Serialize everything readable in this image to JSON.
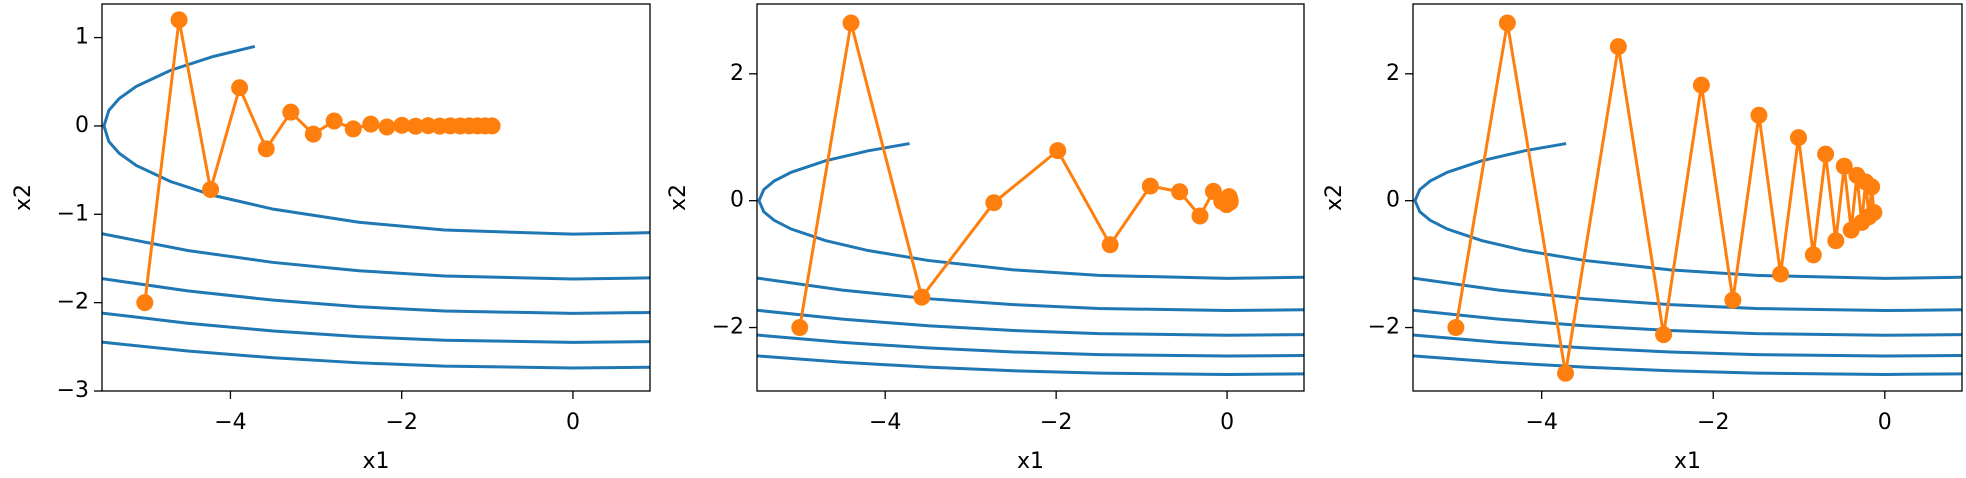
{
  "chart_data": [
    {
      "type": "line",
      "xlabel": "x1",
      "ylabel": "x2",
      "xlim": [
        -5.5,
        0.9
      ],
      "ylim": [
        -3,
        1.38
      ],
      "xticks": [
        {
          "value": -4,
          "label": "−4"
        },
        {
          "value": -2,
          "label": "−2"
        },
        0
      ],
      "yticks": [
        {
          "value": -3,
          "label": "−3"
        },
        {
          "value": -2,
          "label": "−2"
        },
        {
          "value": -1,
          "label": "−1"
        },
        0,
        1
      ],
      "series": [
        {
          "color": "#1f77b4",
          "x": [
            -3.715,
            -4.2,
            -4.7,
            -5.1,
            -5.3,
            -5.42,
            -5.477,
            -5.42,
            -5.3,
            -5.1,
            -4.7,
            -4.2,
            -3.5,
            -2.5,
            -1.5,
            0,
            0.9
          ],
          "values": [
            0.9,
            0.786,
            0.629,
            0.447,
            0.309,
            0.176,
            0,
            -0.176,
            -0.309,
            -0.447,
            -0.629,
            -0.786,
            -0.942,
            -1.09,
            -1.178,
            -1.225,
            -1.208
          ]
        },
        {
          "color": "#1f77b4",
          "x": [
            -5.5,
            -4.5,
            -3.5,
            -2.5,
            -1.5,
            0,
            0.9
          ],
          "values": [
            -1.22,
            -1.41,
            -1.545,
            -1.639,
            -1.699,
            -1.732,
            -1.72
          ]
        },
        {
          "color": "#1f77b4",
          "x": [
            -5.5,
            -4.5,
            -3.5,
            -2.5,
            -1.5,
            0,
            0.9
          ],
          "values": [
            -1.728,
            -1.867,
            -1.972,
            -2.046,
            -2.095,
            -2.121,
            -2.112
          ]
        },
        {
          "color": "#1f77b4",
          "x": [
            -5.5,
            -4.5,
            -3.5,
            -2.5,
            -1.5,
            0,
            0.9
          ],
          "values": [
            -2.118,
            -2.233,
            -2.321,
            -2.385,
            -2.426,
            -2.449,
            -2.441
          ]
        },
        {
          "color": "#1f77b4",
          "x": [
            -5.5,
            -4.5,
            -3.5,
            -2.5,
            -1.5,
            0,
            0.9
          ],
          "values": [
            -2.447,
            -2.547,
            -2.624,
            -2.681,
            -2.718,
            -2.739,
            -2.731
          ]
        },
        {
          "color": "#ff7f0e",
          "marker": "o",
          "x": [
            -5,
            -4.6,
            -4.232,
            -3.893,
            -3.582,
            -3.295,
            -3.032,
            -2.789,
            -2.566,
            -2.361,
            -2.172,
            -1.998,
            -1.838,
            -1.691,
            -1.556,
            -1.432,
            -1.317,
            -1.212,
            -1.115,
            -1.026,
            -0.944
          ],
          "values": [
            -2,
            1.2,
            -0.72,
            0.432,
            -0.259,
            0.156,
            -0.093,
            0.056,
            -0.034,
            0.02,
            -0.012,
            0.007,
            -0.004,
            0.003,
            -0.002,
            0.001,
            -0.001,
            0,
            0,
            0,
            0
          ]
        }
      ]
    },
    {
      "type": "line",
      "xlabel": "x1",
      "ylabel": "x2",
      "xlim": [
        -5.5,
        0.9
      ],
      "ylim": [
        -3,
        3.1
      ],
      "xticks": [
        {
          "value": -4,
          "label": "−4"
        },
        {
          "value": -2,
          "label": "−2"
        },
        0
      ],
      "yticks": [
        {
          "value": -2,
          "label": "−2"
        },
        0,
        2
      ],
      "series": [
        {
          "color": "#1f77b4",
          "x": [
            -3.715,
            -4.2,
            -4.7,
            -5.1,
            -5.3,
            -5.42,
            -5.477,
            -5.42,
            -5.3,
            -5.1,
            -4.7,
            -4.2,
            -3.5,
            -2.5,
            -1.5,
            0,
            0.9
          ],
          "values": [
            0.9,
            0.786,
            0.629,
            0.447,
            0.309,
            0.176,
            0,
            -0.176,
            -0.309,
            -0.447,
            -0.629,
            -0.786,
            -0.942,
            -1.09,
            -1.178,
            -1.225,
            -1.208
          ]
        },
        {
          "color": "#1f77b4",
          "x": [
            -5.5,
            -4.5,
            -3.5,
            -2.5,
            -1.5,
            0,
            0.9
          ],
          "values": [
            -1.22,
            -1.41,
            -1.545,
            -1.639,
            -1.699,
            -1.732,
            -1.72
          ]
        },
        {
          "color": "#1f77b4",
          "x": [
            -5.5,
            -4.5,
            -3.5,
            -2.5,
            -1.5,
            0,
            0.9
          ],
          "values": [
            -1.728,
            -1.867,
            -1.972,
            -2.046,
            -2.095,
            -2.121,
            -2.112
          ]
        },
        {
          "color": "#1f77b4",
          "x": [
            -5.5,
            -4.5,
            -3.5,
            -2.5,
            -1.5,
            0,
            0.9
          ],
          "values": [
            -2.118,
            -2.233,
            -2.321,
            -2.385,
            -2.426,
            -2.449,
            -2.441
          ]
        },
        {
          "color": "#1f77b4",
          "x": [
            -5.5,
            -4.5,
            -3.5,
            -2.5,
            -1.5,
            0,
            0.9
          ],
          "values": [
            -2.447,
            -2.547,
            -2.624,
            -2.681,
            -2.718,
            -2.739,
            -2.731
          ]
        },
        {
          "color": "#ff7f0e",
          "marker": "o",
          "x": [
            -5,
            -4.4,
            -3.572,
            -2.729,
            -1.981,
            -1.368,
            -0.898,
            -0.555,
            -0.317,
            -0.16,
            -0.062,
            -0.006,
            0.023,
            0.035,
            0.037,
            0.033,
            0.028,
            0.021,
            0.015,
            0.011,
            0.007
          ],
          "values": [
            -2,
            2.8,
            -1.52,
            -0.032,
            0.789,
            -0.694,
            0.23,
            0.14,
            -0.241,
            0.147,
            -0.012,
            -0.063,
            0.063,
            -0.025,
            -0.009,
            0.02,
            -0.013,
            0.001,
            0.006,
            -0.006,
            0.002
          ]
        }
      ]
    },
    {
      "type": "line",
      "xlabel": "x1",
      "ylabel": "x2",
      "xlim": [
        -5.5,
        0.9
      ],
      "ylim": [
        -3,
        3.1
      ],
      "xticks": [
        {
          "value": -4,
          "label": "−4"
        },
        {
          "value": -2,
          "label": "−2"
        },
        0
      ],
      "yticks": [
        {
          "value": -2,
          "label": "−2"
        },
        0,
        2
      ],
      "series": [
        {
          "color": "#1f77b4",
          "x": [
            -3.715,
            -4.2,
            -4.7,
            -5.1,
            -5.3,
            -5.42,
            -5.477,
            -5.42,
            -5.3,
            -5.1,
            -4.7,
            -4.2,
            -3.5,
            -2.5,
            -1.5,
            0,
            0.9
          ],
          "values": [
            0.9,
            0.786,
            0.629,
            0.447,
            0.309,
            0.176,
            0,
            -0.176,
            -0.309,
            -0.447,
            -0.629,
            -0.786,
            -0.942,
            -1.09,
            -1.178,
            -1.225,
            -1.208
          ]
        },
        {
          "color": "#1f77b4",
          "x": [
            -5.5,
            -4.5,
            -3.5,
            -2.5,
            -1.5,
            0,
            0.9
          ],
          "values": [
            -1.22,
            -1.41,
            -1.545,
            -1.639,
            -1.699,
            -1.732,
            -1.72
          ]
        },
        {
          "color": "#1f77b4",
          "x": [
            -5.5,
            -4.5,
            -3.5,
            -2.5,
            -1.5,
            0,
            0.9
          ],
          "values": [
            -1.728,
            -1.867,
            -1.972,
            -2.046,
            -2.095,
            -2.121,
            -2.112
          ]
        },
        {
          "color": "#1f77b4",
          "x": [
            -5.5,
            -4.5,
            -3.5,
            -2.5,
            -1.5,
            0,
            0.9
          ],
          "values": [
            -2.118,
            -2.233,
            -2.321,
            -2.385,
            -2.426,
            -2.449,
            -2.441
          ]
        },
        {
          "color": "#1f77b4",
          "x": [
            -5.5,
            -4.5,
            -3.5,
            -2.5,
            -1.5,
            0,
            0.9
          ],
          "values": [
            -2.447,
            -2.547,
            -2.624,
            -2.681,
            -2.718,
            -2.739,
            -2.731
          ]
        },
        {
          "color": "#ff7f0e",
          "marker": "o",
          "x": [
            -5,
            -4.4,
            -3.722,
            -3.106,
            -2.579,
            -2.138,
            -1.771,
            -1.467,
            -1.215,
            -1.006,
            -0.833,
            -0.69,
            -0.571,
            -0.473,
            -0.392,
            -0.325,
            -0.269,
            -0.223,
            -0.185,
            -0.153,
            -0.127
          ],
          "values": [
            -2,
            2.8,
            -2.72,
            2.428,
            -2.112,
            1.822,
            -1.567,
            1.347,
            -1.157,
            0.994,
            -0.854,
            0.734,
            -0.631,
            0.542,
            -0.465,
            0.399,
            -0.343,
            0.295,
            -0.253,
            0.217,
            -0.186
          ]
        }
      ]
    }
  ]
}
